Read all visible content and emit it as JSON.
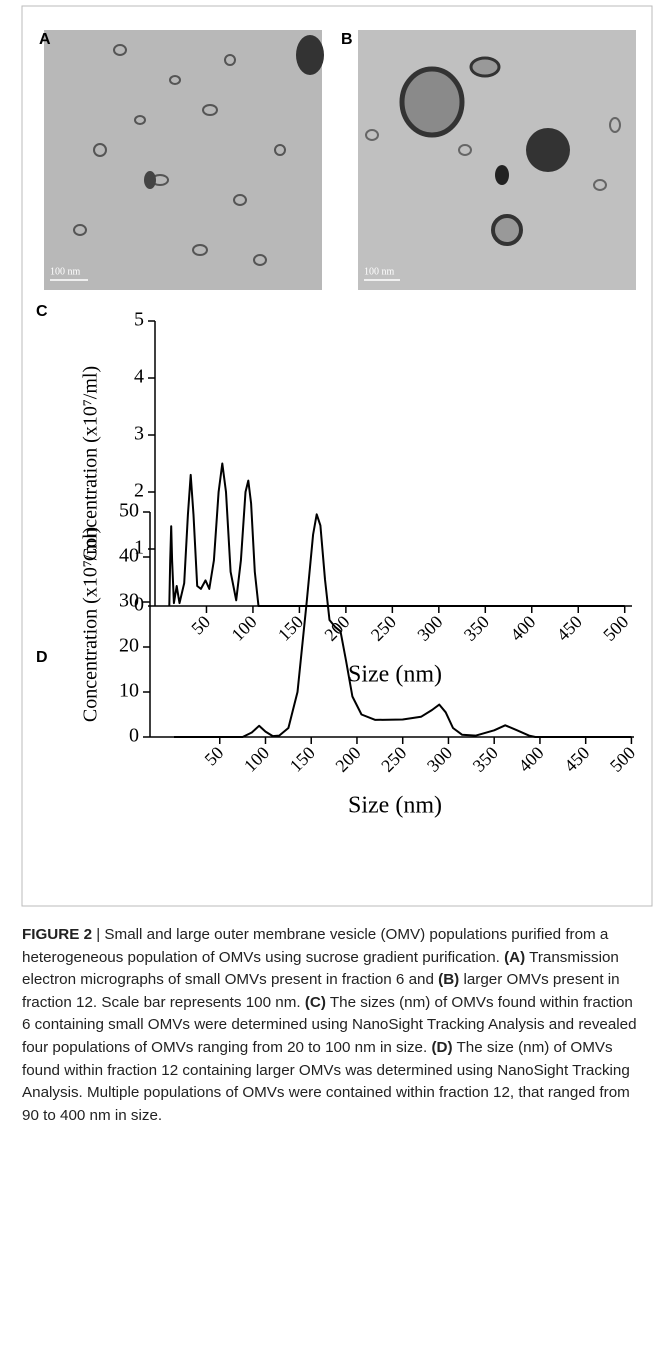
{
  "panels": [
    {
      "label": "A",
      "scale_bar": "100 nm"
    },
    {
      "label": "B",
      "scale_bar": "100 nm"
    }
  ],
  "chart_data": [
    {
      "type": "line",
      "label": "C",
      "ylabel": "Concentration (x10⁷/ml)",
      "xlabel": "Size (nm)",
      "color": "#000000",
      "xlim": [
        0,
        510
      ],
      "xticks": [
        50,
        100,
        150,
        200,
        250,
        300,
        350,
        400,
        450,
        500
      ],
      "ylim": [
        0,
        5
      ],
      "yticks": [
        0,
        1,
        2,
        3,
        4,
        5
      ],
      "x": [
        10,
        11,
        12,
        13,
        15,
        18,
        21,
        26,
        30,
        33,
        36,
        40,
        44,
        49,
        53,
        58,
        63,
        67,
        71,
        76,
        82,
        87,
        92,
        95,
        98,
        102,
        106,
        500
      ],
      "values": [
        0,
        0.8,
        1.4,
        0.8,
        0.05,
        0.35,
        0.05,
        0.4,
        1.6,
        2.3,
        1.6,
        0.35,
        0.3,
        0.45,
        0.3,
        0.8,
        2.0,
        2.5,
        2.0,
        0.6,
        0.1,
        0.8,
        2.0,
        2.2,
        1.8,
        0.6,
        0,
        0
      ]
    },
    {
      "type": "line",
      "label": "D",
      "ylabel": "Concentration (x10⁷/ml)",
      "xlabel": "Size (nm)",
      "color": "#000000",
      "xlim": [
        0,
        505
      ],
      "xticks": [
        50,
        100,
        150,
        200,
        250,
        300,
        350,
        400,
        450,
        500
      ],
      "ylim": [
        0,
        50
      ],
      "yticks": [
        0,
        10,
        20,
        30,
        40,
        50
      ],
      "x": [
        0,
        75,
        85,
        93,
        100,
        108,
        115,
        125,
        135,
        145,
        152,
        156,
        160,
        165,
        170,
        176,
        182,
        188,
        195,
        205,
        220,
        250,
        270,
        282,
        290,
        297,
        305,
        315,
        330,
        350,
        362,
        375,
        388,
        395,
        500
      ],
      "values": [
        0,
        0,
        1,
        2.5,
        1.2,
        0.2,
        0.3,
        2,
        10,
        30,
        45,
        49.5,
        47,
        35,
        26,
        24.5,
        23.5,
        17,
        9,
        5,
        3.8,
        3.9,
        4.5,
        6,
        7.2,
        5.5,
        2,
        0.5,
        0.3,
        1.5,
        2.6,
        1.5,
        0.3,
        0,
        0
      ]
    }
  ],
  "caption": {
    "label": "FIGURE 2",
    "segments": [
      {
        "text": " | Small and large outer membrane vesicle (OMV) populations purified from a heterogeneous population of OMVs using sucrose gradient purification. ",
        "bold": false
      },
      {
        "text": "(A)",
        "bold": true
      },
      {
        "text": " Transmission electron micrographs of small OMVs present in fraction 6 and ",
        "bold": false
      },
      {
        "text": "(B)",
        "bold": true
      },
      {
        "text": " larger OMVs present in fraction 12. Scale bar represents 100 nm. ",
        "bold": false
      },
      {
        "text": "(C)",
        "bold": true
      },
      {
        "text": " The sizes (nm) of OMVs found within fraction 6 containing small OMVs were determined using NanoSight Tracking Analysis and revealed four populations of OMVs ranging from 20 to 100 nm in size. ",
        "bold": false
      },
      {
        "text": "(D)",
        "bold": true
      },
      {
        "text": " The size (nm) of OMVs found within fraction 12 containing larger OMVs was determined using NanoSight Tracking Analysis. Multiple populations of OMVs were contained within fraction 12, that ranged from 90 to 400 nm in size.",
        "bold": false
      }
    ]
  }
}
